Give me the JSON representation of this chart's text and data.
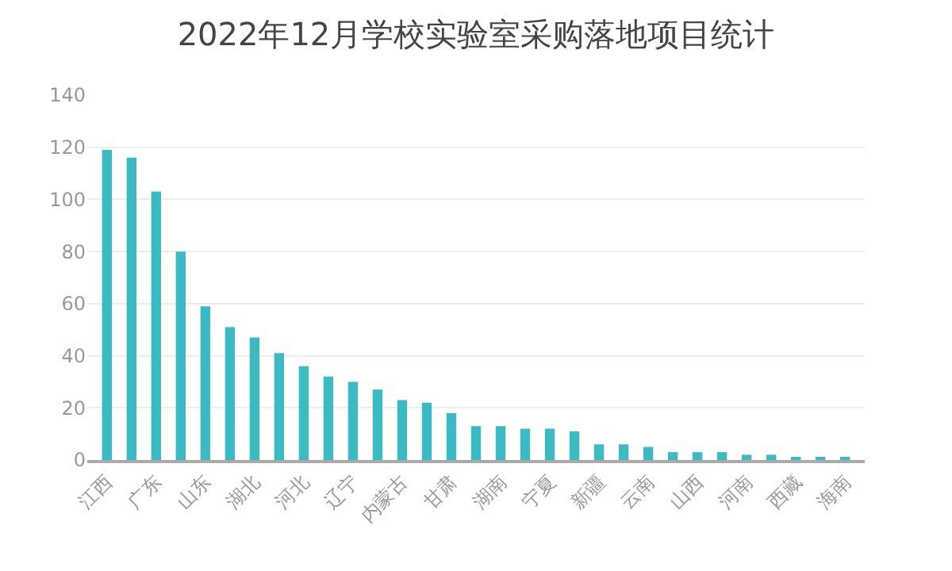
{
  "chart_data": {
    "type": "bar",
    "title": "2022年12月学校实验室采购落地项目统计",
    "categories": [
      "江西",
      null,
      "广东",
      null,
      "山东",
      null,
      "湖北",
      null,
      "河北",
      null,
      "辽宁",
      null,
      "内蒙古",
      null,
      "甘肃",
      null,
      "湖南",
      null,
      "宁夏",
      null,
      "新疆",
      null,
      "云南",
      null,
      "山西",
      null,
      "河南",
      null,
      "西藏",
      null,
      "海南"
    ],
    "values": [
      119,
      116,
      103,
      80,
      59,
      51,
      47,
      41,
      36,
      32,
      30,
      27,
      23,
      22,
      18,
      13,
      13,
      12,
      12,
      11,
      6,
      6,
      5,
      3,
      3,
      3,
      2,
      2,
      1,
      1,
      1
    ],
    "color": "#3cbac3",
    "ylim": [
      0,
      140
    ],
    "yticks": [
      0,
      20,
      40,
      60,
      80,
      100,
      120,
      140
    ],
    "grid": "y"
  }
}
